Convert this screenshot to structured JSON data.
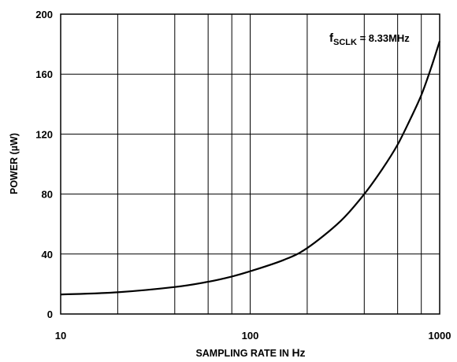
{
  "chart_data": {
    "type": "line",
    "xlabel_main": "SAMPLING RATE IN ",
    "xlabel_unit": "Hz",
    "ylabel": "POWER  (µW)",
    "xscale": "log",
    "xlim": [
      10,
      1000
    ],
    "ylim": [
      0,
      200
    ],
    "grid": true,
    "x_ticks": [
      10,
      100,
      1000
    ],
    "x_tick_labels": [
      "10",
      "100",
      "1000"
    ],
    "x_gridlines": [
      20,
      40,
      60,
      80,
      100,
      200,
      400,
      600,
      800
    ],
    "y_ticks": [
      0,
      40,
      80,
      120,
      160,
      200
    ],
    "y_tick_labels": [
      "0",
      "40",
      "80",
      "120",
      "160",
      "200"
    ],
    "annotation": {
      "prefix": "f",
      "subscript": "SCLK",
      "suffix": " = 8.33MHz"
    },
    "series": [
      {
        "x": [
          10,
          20,
          40,
          60,
          80,
          100,
          150,
          200,
          300,
          400,
          500,
          600,
          700,
          800,
          900,
          1000
        ],
        "y": [
          13,
          14.5,
          18,
          21.5,
          25,
          28.5,
          36,
          44,
          62,
          80,
          97,
          113,
          130,
          146,
          164,
          182
        ]
      }
    ]
  }
}
